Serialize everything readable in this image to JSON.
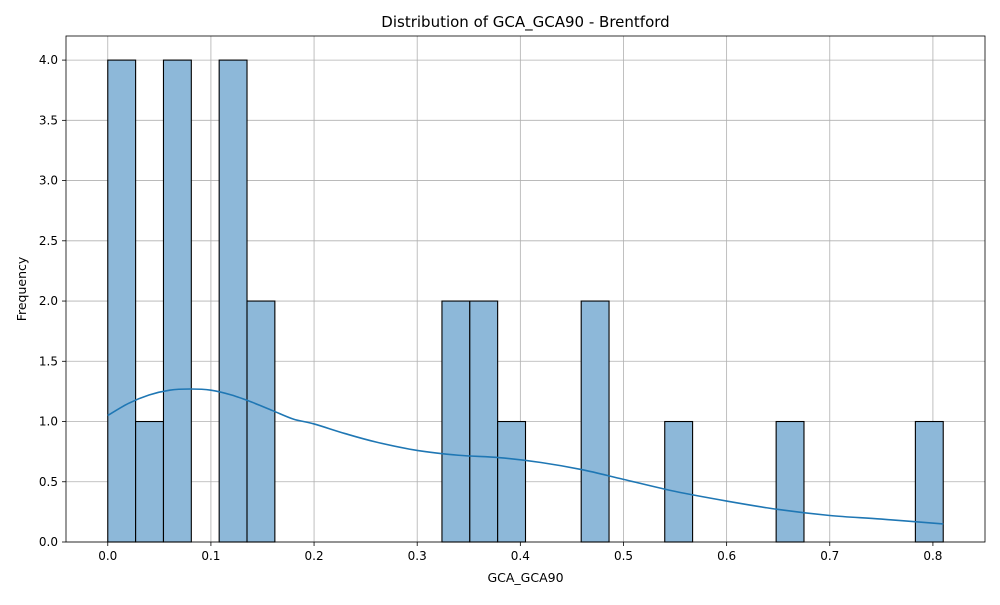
{
  "chart_data": {
    "type": "bar",
    "title": "Distribution of GCA_GCA90 - Brentford",
    "xlabel": "GCA_GCA90",
    "ylabel": "Frequency",
    "xlim": [
      -0.0405,
      0.8505
    ],
    "ylim": [
      0,
      4.2
    ],
    "xticks": [
      "0.0",
      "0.1",
      "0.2",
      "0.3",
      "0.4",
      "0.5",
      "0.6",
      "0.7",
      "0.8"
    ],
    "xtick_values": [
      0,
      0.1,
      0.2,
      0.3,
      0.4,
      0.5,
      0.6,
      0.7,
      0.8
    ],
    "yticks": [
      "0.0",
      "0.5",
      "1.0",
      "1.5",
      "2.0",
      "2.5",
      "3.0",
      "3.5",
      "4.0"
    ],
    "ytick_values": [
      0,
      0.5,
      1,
      1.5,
      2,
      2.5,
      3,
      3.5,
      4
    ],
    "grid": true,
    "bins": [
      {
        "x0": 0.0,
        "x1": 0.027,
        "count": 4
      },
      {
        "x0": 0.027,
        "x1": 0.054,
        "count": 1
      },
      {
        "x0": 0.054,
        "x1": 0.081,
        "count": 4
      },
      {
        "x0": 0.108,
        "x1": 0.135,
        "count": 4
      },
      {
        "x0": 0.135,
        "x1": 0.162,
        "count": 2
      },
      {
        "x0": 0.324,
        "x1": 0.351,
        "count": 2
      },
      {
        "x0": 0.351,
        "x1": 0.378,
        "count": 2
      },
      {
        "x0": 0.378,
        "x1": 0.405,
        "count": 1
      },
      {
        "x0": 0.459,
        "x1": 0.486,
        "count": 2
      },
      {
        "x0": 0.54,
        "x1": 0.567,
        "count": 1
      },
      {
        "x0": 0.648,
        "x1": 0.675,
        "count": 1
      },
      {
        "x0": 0.783,
        "x1": 0.81,
        "count": 1
      }
    ],
    "kde": {
      "x": [
        0.0,
        0.02,
        0.04,
        0.06,
        0.08,
        0.1,
        0.12,
        0.14,
        0.16,
        0.18,
        0.2,
        0.23,
        0.26,
        0.3,
        0.34,
        0.38,
        0.42,
        0.46,
        0.5,
        0.55,
        0.6,
        0.65,
        0.7,
        0.75,
        0.81
      ],
      "y": [
        1.05,
        1.15,
        1.22,
        1.26,
        1.27,
        1.26,
        1.22,
        1.16,
        1.09,
        1.02,
        0.98,
        0.9,
        0.83,
        0.76,
        0.72,
        0.7,
        0.66,
        0.6,
        0.52,
        0.42,
        0.34,
        0.27,
        0.22,
        0.19,
        0.15
      ]
    },
    "colors": {
      "bar_fill": "#8db8d9",
      "bar_edge": "#000000",
      "kde_line": "#1f77b4",
      "grid": "#b0b0b0"
    }
  }
}
